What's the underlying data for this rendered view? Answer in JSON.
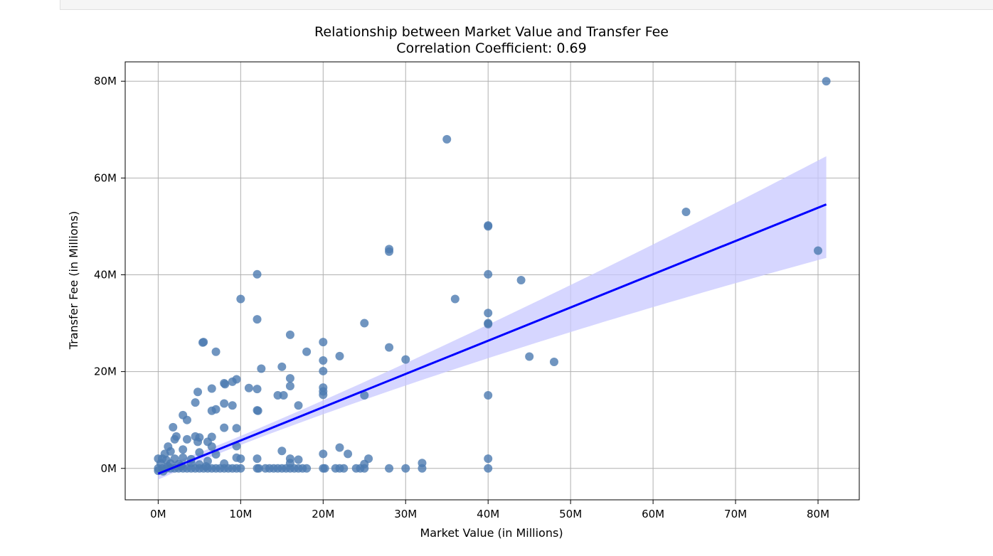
{
  "chart_data": {
    "type": "scatter",
    "title": "Relationship between Market Value and Transfer Fee",
    "subtitle": "Correlation Coefficient: 0.69",
    "xlabel": "Market Value (in Millions)",
    "ylabel": "Transfer Fee (in Millions)",
    "xlim": [
      -4,
      85
    ],
    "ylim": [
      -6.5,
      84
    ],
    "x_ticks": [
      0,
      10,
      20,
      30,
      40,
      50,
      60,
      70,
      80
    ],
    "x_tick_labels": [
      "0M",
      "10M",
      "20M",
      "30M",
      "40M",
      "50M",
      "60M",
      "70M",
      "80M"
    ],
    "y_ticks": [
      0,
      20,
      40,
      60,
      80
    ],
    "y_tick_labels": [
      "0M",
      "20M",
      "40M",
      "60M",
      "80M"
    ],
    "grid": true,
    "points": [
      [
        81,
        80
      ],
      [
        35,
        68
      ],
      [
        64,
        53
      ],
      [
        40,
        50.2
      ],
      [
        40,
        50
      ],
      [
        28,
        45.3
      ],
      [
        28,
        44.8
      ],
      [
        80,
        45
      ],
      [
        12,
        40.1
      ],
      [
        40,
        40.1
      ],
      [
        44,
        38.9
      ],
      [
        10,
        35
      ],
      [
        36,
        35
      ],
      [
        40,
        32.1
      ],
      [
        12,
        30.8
      ],
      [
        25,
        30
      ],
      [
        40,
        30
      ],
      [
        40,
        29.8
      ],
      [
        16,
        27.6
      ],
      [
        5.5,
        26.1
      ],
      [
        5.4,
        26
      ],
      [
        20,
        26.1
      ],
      [
        28,
        25
      ],
      [
        7,
        24.1
      ],
      [
        18,
        24.1
      ],
      [
        22,
        23.2
      ],
      [
        45,
        23.1
      ],
      [
        30,
        22.5
      ],
      [
        20,
        22.3
      ],
      [
        48,
        22
      ],
      [
        15,
        21
      ],
      [
        12.5,
        20.6
      ],
      [
        20,
        20.1
      ],
      [
        9.5,
        18.4
      ],
      [
        9,
        17.9
      ],
      [
        16,
        18.6
      ],
      [
        8,
        17.6
      ],
      [
        8.1,
        17.4
      ],
      [
        20,
        16.7
      ],
      [
        16,
        17
      ],
      [
        11,
        16.6
      ],
      [
        12,
        16.4
      ],
      [
        6.5,
        16.5
      ],
      [
        20,
        15.9
      ],
      [
        4.8,
        15.8
      ],
      [
        14.5,
        15.1
      ],
      [
        15.2,
        15.1
      ],
      [
        25,
        15.1
      ],
      [
        20,
        15.2
      ],
      [
        40,
        15.1
      ],
      [
        8,
        13.4
      ],
      [
        9,
        13
      ],
      [
        17,
        13
      ],
      [
        4.5,
        13.6
      ],
      [
        6.5,
        11.9
      ],
      [
        7,
        12.2
      ],
      [
        12,
        12
      ],
      [
        12.1,
        11.9
      ],
      [
        3,
        11
      ],
      [
        3.5,
        10
      ],
      [
        1.8,
        8.5
      ],
      [
        8,
        8.4
      ],
      [
        9.5,
        8.3
      ],
      [
        2.2,
        6.6
      ],
      [
        4.5,
        6.6
      ],
      [
        5,
        6.4
      ],
      [
        6.5,
        6.5
      ],
      [
        4.8,
        5.5
      ],
      [
        6,
        5.5
      ],
      [
        2,
        6
      ],
      [
        3.5,
        6
      ],
      [
        1.2,
        4.5
      ],
      [
        6.5,
        4.5
      ],
      [
        9.5,
        4.6
      ],
      [
        22,
        4.3
      ],
      [
        1.5,
        3.5
      ],
      [
        3,
        3.9
      ],
      [
        15,
        3.6
      ],
      [
        0.8,
        3
      ],
      [
        5,
        3.3
      ],
      [
        7,
        2.9
      ],
      [
        20,
        3
      ],
      [
        23,
        3
      ],
      [
        0,
        2
      ],
      [
        0.5,
        2
      ],
      [
        1,
        1.7
      ],
      [
        2,
        2
      ],
      [
        3,
        2.2
      ],
      [
        4,
        1.9
      ],
      [
        6,
        1.5
      ],
      [
        9.5,
        2.2
      ],
      [
        10,
        2
      ],
      [
        12,
        2
      ],
      [
        16,
        2
      ],
      [
        17,
        1.8
      ],
      [
        25.5,
        2
      ],
      [
        32,
        1.1
      ],
      [
        40,
        2
      ],
      [
        0.3,
        1
      ],
      [
        1.5,
        1
      ],
      [
        2.5,
        0.9
      ],
      [
        4,
        1.1
      ],
      [
        5,
        0.8
      ],
      [
        8,
        1
      ],
      [
        16,
        1.1
      ],
      [
        25,
        0.9
      ],
      [
        0,
        0
      ],
      [
        0.5,
        0
      ],
      [
        1,
        0
      ],
      [
        1.5,
        0
      ],
      [
        2,
        0
      ],
      [
        2.5,
        0
      ],
      [
        3,
        0
      ],
      [
        3.5,
        0
      ],
      [
        4,
        0
      ],
      [
        4.5,
        0
      ],
      [
        5,
        0
      ],
      [
        5.5,
        0
      ],
      [
        6,
        0
      ],
      [
        6.5,
        0
      ],
      [
        7,
        0
      ],
      [
        7.5,
        0
      ],
      [
        8,
        0
      ],
      [
        8.5,
        0
      ],
      [
        9,
        0
      ],
      [
        9.5,
        0
      ],
      [
        10,
        0
      ],
      [
        12,
        0
      ],
      [
        12.2,
        0
      ],
      [
        13,
        0
      ],
      [
        13.5,
        0
      ],
      [
        14,
        0
      ],
      [
        14.5,
        0
      ],
      [
        15,
        0
      ],
      [
        15.5,
        0
      ],
      [
        16,
        0
      ],
      [
        16.5,
        0
      ],
      [
        17,
        0
      ],
      [
        17.5,
        0
      ],
      [
        18,
        0
      ],
      [
        20,
        0
      ],
      [
        20.2,
        0
      ],
      [
        21.5,
        0
      ],
      [
        22,
        0
      ],
      [
        22.5,
        0
      ],
      [
        24,
        0
      ],
      [
        24.5,
        0
      ],
      [
        25,
        0
      ],
      [
        28,
        0
      ],
      [
        30,
        0
      ],
      [
        32,
        0
      ],
      [
        40,
        0
      ],
      [
        1.2,
        0.4
      ],
      [
        2.8,
        0.5
      ],
      [
        5.8,
        0.4
      ],
      [
        0.6,
        -0.6
      ],
      [
        0,
        -0.5
      ]
    ],
    "regression": {
      "x_start": 0,
      "x_end": 81,
      "intercept": -1.1,
      "slope": 0.687,
      "ci_lower_end": 43.5,
      "ci_upper_end": 64.5,
      "ci_width_at_mean": 0.9,
      "x_mean": 8
    },
    "colors": {
      "points": "#4c7bb0",
      "line": "#0000ff",
      "band": "#c8c8ff",
      "grid": "#b0b0b0",
      "frame": "#000000"
    }
  }
}
